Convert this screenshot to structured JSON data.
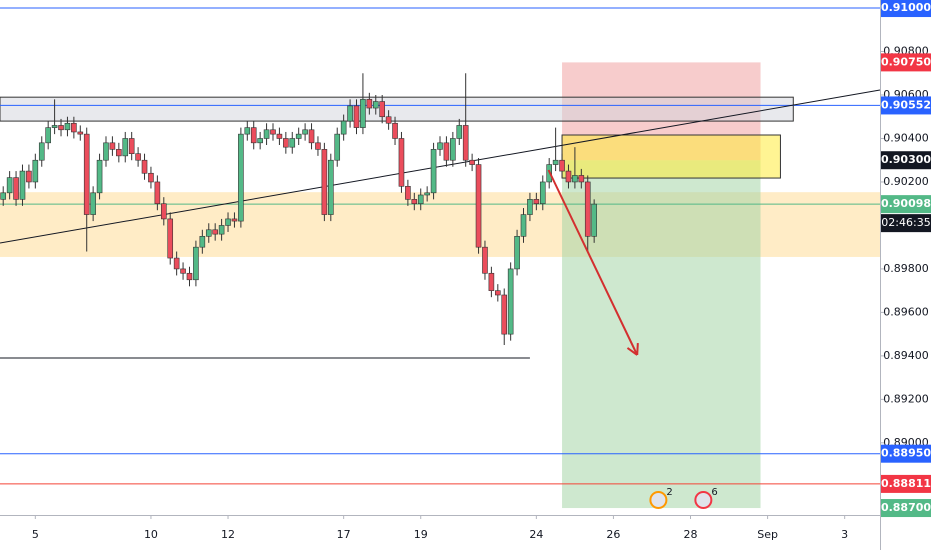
{
  "chart_data": {
    "type": "candlestick",
    "x": [
      0,
      1,
      2,
      3,
      4,
      5,
      6,
      7,
      8,
      9,
      10,
      11,
      12,
      13,
      14,
      15,
      16,
      17,
      18,
      19,
      20,
      21,
      22,
      23,
      24,
      25,
      26,
      27,
      28,
      29,
      30,
      31,
      32,
      33,
      34,
      35,
      36,
      37,
      38,
      39,
      40,
      41,
      42,
      43,
      44,
      45,
      46,
      47,
      48,
      49,
      50,
      51,
      52,
      53,
      54,
      55,
      56,
      57,
      58,
      59,
      60,
      61,
      62,
      63,
      64,
      65,
      66,
      67,
      68,
      69,
      70,
      71,
      72,
      73,
      74,
      75,
      76,
      77,
      78,
      79,
      80,
      81,
      82,
      83,
      84,
      85,
      86,
      87,
      88,
      89,
      90,
      91,
      92
    ],
    "open": [
      0.9012,
      0.9015,
      0.9022,
      0.9012,
      0.9025,
      0.902,
      0.903,
      0.9038,
      0.9045,
      0.9046,
      0.9044,
      0.9047,
      0.9043,
      0.9042,
      0.9005,
      0.9015,
      0.903,
      0.9038,
      0.9035,
      0.9032,
      0.904,
      0.9033,
      0.903,
      0.9024,
      0.902,
      0.901,
      0.9003,
      0.8985,
      0.898,
      0.8978,
      0.8975,
      0.899,
      0.8995,
      0.8998,
      0.8996,
      0.9,
      0.9003,
      0.9002,
      0.9042,
      0.9045,
      0.9038,
      0.904,
      0.9044,
      0.9042,
      0.904,
      0.9036,
      0.904,
      0.9042,
      0.9044,
      0.9038,
      0.9035,
      0.9005,
      0.903,
      0.9042,
      0.9048,
      0.9055,
      0.9045,
      0.9058,
      0.9054,
      0.9057,
      0.905,
      0.9047,
      0.904,
      0.9018,
      0.9012,
      0.901,
      0.9014,
      0.9015,
      0.9035,
      0.9038,
      0.903,
      0.904,
      0.9046,
      0.903,
      0.9028,
      0.899,
      0.8978,
      0.897,
      0.8968,
      0.895,
      0.898,
      0.8995,
      0.9005,
      0.9012,
      0.901,
      0.902,
      0.9028,
      0.903,
      0.9025,
      0.902,
      0.9023,
      0.902,
      0.8995
    ],
    "high": [
      0.9018,
      0.9025,
      0.9025,
      0.9028,
      0.9028,
      0.9033,
      0.9041,
      0.9048,
      0.9058,
      0.9049,
      0.905,
      0.905,
      0.9046,
      0.9045,
      0.9018,
      0.9033,
      0.9041,
      0.9041,
      0.9038,
      0.9043,
      0.9043,
      0.9036,
      0.9033,
      0.9027,
      0.9023,
      0.9013,
      0.9006,
      0.8988,
      0.8983,
      0.8981,
      0.8993,
      0.8998,
      0.9001,
      0.9001,
      0.9003,
      0.9006,
      0.9006,
      0.9045,
      0.9048,
      0.9048,
      0.9043,
      0.9047,
      0.9047,
      0.9045,
      0.9043,
      0.9043,
      0.9045,
      0.9047,
      0.9047,
      0.9041,
      0.9038,
      0.9033,
      0.9045,
      0.9051,
      0.9058,
      0.9058,
      0.907,
      0.9061,
      0.906,
      0.906,
      0.9053,
      0.905,
      0.9043,
      0.9021,
      0.9015,
      0.9017,
      0.9018,
      0.9038,
      0.9041,
      0.9041,
      0.9043,
      0.9049,
      0.907,
      0.9033,
      0.9031,
      0.8993,
      0.8981,
      0.8973,
      0.8971,
      0.8983,
      0.8998,
      0.9008,
      0.9015,
      0.9015,
      0.9023,
      0.9031,
      0.9045,
      0.9033,
      0.9028,
      0.9036,
      0.9026,
      0.9023,
      0.9012
    ],
    "low": [
      0.9009,
      0.9012,
      0.9009,
      0.9009,
      0.9017,
      0.9017,
      0.9027,
      0.9035,
      0.9042,
      0.9041,
      0.9041,
      0.904,
      0.9039,
      0.8988,
      0.9002,
      0.9012,
      0.9027,
      0.9032,
      0.9029,
      0.9029,
      0.903,
      0.9027,
      0.9021,
      0.9017,
      0.9007,
      0.9,
      0.8982,
      0.8977,
      0.8975,
      0.8972,
      0.8972,
      0.8987,
      0.8992,
      0.8993,
      0.8993,
      0.8997,
      0.8999,
      0.8999,
      0.9039,
      0.9035,
      0.9035,
      0.9037,
      0.9039,
      0.9037,
      0.9033,
      0.9033,
      0.9037,
      0.9039,
      0.9035,
      0.9032,
      0.9002,
      0.9002,
      0.9027,
      0.9039,
      0.9045,
      0.9042,
      0.9042,
      0.9051,
      0.9051,
      0.9047,
      0.9044,
      0.9037,
      0.9015,
      0.9009,
      0.9007,
      0.9007,
      0.9011,
      0.9012,
      0.9032,
      0.9027,
      0.9027,
      0.9037,
      0.9027,
      0.9025,
      0.8987,
      0.8975,
      0.8967,
      0.8965,
      0.8945,
      0.8947,
      0.8977,
      0.8992,
      0.9002,
      0.9007,
      0.9007,
      0.9017,
      0.9025,
      0.9022,
      0.9017,
      0.9017,
      0.9017,
      0.8988,
      0.8992
    ],
    "close": [
      0.9015,
      0.9022,
      0.9012,
      0.9025,
      0.902,
      0.903,
      0.9038,
      0.9045,
      0.9046,
      0.9044,
      0.9047,
      0.9043,
      0.9042,
      0.9005,
      0.9015,
      0.903,
      0.9038,
      0.9035,
      0.9032,
      0.904,
      0.9033,
      0.903,
      0.9024,
      0.902,
      0.901,
      0.9003,
      0.8985,
      0.898,
      0.8978,
      0.8975,
      0.899,
      0.8995,
      0.8998,
      0.8996,
      0.9,
      0.9003,
      0.9002,
      0.9042,
      0.9045,
      0.9038,
      0.904,
      0.9044,
      0.9042,
      0.904,
      0.9036,
      0.904,
      0.9042,
      0.9044,
      0.9038,
      0.9035,
      0.9005,
      0.903,
      0.9042,
      0.9048,
      0.9055,
      0.9045,
      0.9058,
      0.9054,
      0.9057,
      0.905,
      0.9047,
      0.904,
      0.9018,
      0.9012,
      0.901,
      0.9014,
      0.9015,
      0.9035,
      0.9038,
      0.903,
      0.904,
      0.9046,
      0.903,
      0.9028,
      0.899,
      0.8978,
      0.897,
      0.8968,
      0.895,
      0.898,
      0.8995,
      0.9005,
      0.9012,
      0.901,
      0.902,
      0.9028,
      0.903,
      0.9025,
      0.902,
      0.9023,
      0.902,
      0.8995,
      0.90098
    ],
    "up_color": "#53b987",
    "down_color": "#eb4d5c",
    "xlim": [
      -0.5,
      136.5
    ],
    "ylim": [
      0.88668,
      0.91037
    ],
    "xticks": [
      {
        "value": 5,
        "label": "5"
      },
      {
        "value": 23,
        "label": "10"
      },
      {
        "value": 35,
        "label": "12"
      },
      {
        "value": 53,
        "label": "17"
      },
      {
        "value": 65,
        "label": "19"
      },
      {
        "value": 83,
        "label": "24"
      },
      {
        "value": 95,
        "label": "26"
      },
      {
        "value": 107,
        "label": "28"
      },
      {
        "value": 119,
        "label": "Sep"
      },
      {
        "value": 131,
        "label": "3"
      }
    ],
    "yticks": [
      {
        "value": 0.908,
        "label": "0.90800"
      },
      {
        "value": 0.906,
        "label": "0.90600"
      },
      {
        "value": 0.904,
        "label": "0.90400"
      },
      {
        "value": 0.902,
        "label": "0.90200"
      },
      {
        "value": 0.898,
        "label": "0.89800"
      },
      {
        "value": 0.896,
        "label": "0.89600"
      },
      {
        "value": 0.894,
        "label": "0.89400"
      },
      {
        "value": 0.892,
        "label": "0.89200"
      },
      {
        "value": 0.89,
        "label": "0.89000"
      }
    ],
    "zones": [
      {
        "x": [
          -0.5,
          136.5
        ],
        "y": [
          0.90153,
          0.89855
        ],
        "color": "#ffe0a0",
        "opacity": 0.6
      },
      {
        "x": [
          87,
          117.9
        ],
        "y": [
          0.887,
          0.903
        ],
        "color": "#a5d6a7",
        "opacity": 0.55
      },
      {
        "x": [
          87,
          117.9
        ],
        "y": [
          0.903,
          0.9075
        ],
        "color": "#ef9a9a",
        "opacity": 0.5
      },
      {
        "x": [
          87,
          121
        ],
        "y": [
          0.90416,
          0.90218
        ],
        "color": "#ffeb3b",
        "opacity": 0.55,
        "stroke": "#333333"
      },
      {
        "x": [
          -0.5,
          123
        ],
        "y": [
          0.9059,
          0.9048
        ],
        "color": "#d1d4dc",
        "opacity": 0.5,
        "stroke": "#333333"
      }
    ],
    "lines": [
      {
        "x": [
          -0.5,
          136.5
        ],
        "y": [
          0.91,
          0.91
        ],
        "color": "#2962ff"
      },
      {
        "x": [
          -0.5,
          136.5
        ],
        "y": [
          0.90552,
          0.90552
        ],
        "color": "#2962ff"
      },
      {
        "x": [
          -0.5,
          136.5
        ],
        "y": [
          0.8895,
          0.8895
        ],
        "color": "#2962ff"
      },
      {
        "x": [
          -0.5,
          136.5
        ],
        "y": [
          0.88811,
          0.88811
        ],
        "color": "#f44336"
      },
      {
        "x": [
          -0.5,
          136.5
        ],
        "y": [
          0.90098,
          0.90098
        ],
        "color": "#53b987"
      },
      {
        "x": [
          -0.5,
          82
        ],
        "y": [
          0.8939,
          0.8939
        ],
        "color": "#131722"
      },
      {
        "x": [
          -0.5,
          136.5
        ],
        "y": [
          0.89919,
          0.90623
        ],
        "color": "#131722"
      }
    ],
    "arrow": {
      "x": [
        84.9,
        98.7
      ],
      "y": [
        0.90255,
        0.89404
      ],
      "color": "#d32f2f"
    },
    "price_labels": [
      {
        "value": 0.91,
        "label": "0.91000",
        "color": "#2962ff"
      },
      {
        "value": 0.9075,
        "label": "0.90750",
        "color": "#f23645"
      },
      {
        "value": 0.90552,
        "label": "0.90552",
        "color": "#2962ff"
      },
      {
        "value": 0.903,
        "label": "0.90300",
        "color": "#131722"
      },
      {
        "value": 0.90098,
        "label": "0.90098",
        "color": "#53b987"
      },
      {
        "value": 0.8895,
        "label": "0.88950",
        "color": "#2962ff"
      },
      {
        "value": 0.88811,
        "label": "0.88811",
        "color": "#f23645"
      },
      {
        "value": 0.887,
        "label": "0.88700",
        "color": "#53b987"
      }
    ],
    "countdown": "02:46:35",
    "events": [
      {
        "x": 102,
        "label": "2"
      },
      {
        "x": 109,
        "label": "6"
      }
    ]
  }
}
